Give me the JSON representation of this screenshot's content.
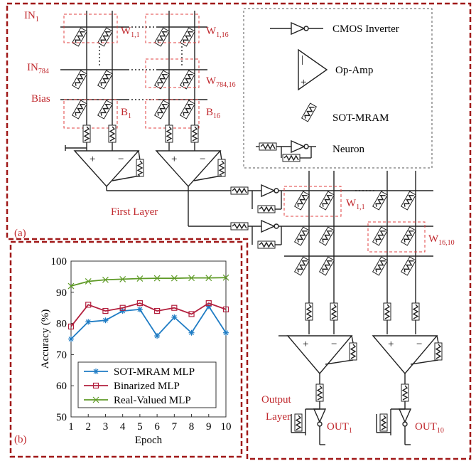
{
  "labels": {
    "in1": {
      "text": "IN",
      "sub": "1"
    },
    "in784": {
      "text": "IN",
      "sub": "784"
    },
    "bias": {
      "text": "Bias"
    },
    "w11": {
      "text": "W",
      "sub": "1,1"
    },
    "w116": {
      "text": "W",
      "sub": "1,16"
    },
    "w78416": {
      "text": "W",
      "sub": "784,16"
    },
    "b1": {
      "text": "B",
      "sub": "1"
    },
    "b16": {
      "text": "B",
      "sub": "16"
    },
    "first_layer": {
      "text": "First Layer"
    },
    "w11_out": {
      "text": "W",
      "sub": "1,1"
    },
    "w1610": {
      "text": "W",
      "sub": "16,10"
    },
    "output_layer": {
      "text": "Output"
    },
    "output_layer2": {
      "text": "Layer"
    },
    "out1": {
      "text": "OUT",
      "sub": "1"
    },
    "out10": {
      "text": "OUT",
      "sub": "10"
    },
    "panel_a": {
      "text": "(a)"
    },
    "panel_b": {
      "text": "(b)"
    }
  },
  "legend_box": {
    "inverter": "CMOS Inverter",
    "opamp": "Op-Amp",
    "sotmram": "SOT-MRAM",
    "neuron": "Neuron"
  },
  "chart_data": {
    "type": "line",
    "xlabel": "Epoch",
    "ylabel": "Accuracy (%)",
    "x": [
      1,
      2,
      3,
      4,
      5,
      6,
      7,
      8,
      9,
      10
    ],
    "xlim": [
      1,
      10
    ],
    "xticks": [
      1,
      2,
      3,
      4,
      5,
      6,
      7,
      8,
      9,
      10
    ],
    "ylim": [
      50,
      100
    ],
    "yticks": [
      50,
      60,
      70,
      80,
      90,
      100
    ],
    "series": [
      {
        "name": "SOT-MRAM MLP",
        "color": "#1f7cc4",
        "marker": "star",
        "values": [
          75,
          80.5,
          81,
          84,
          84.5,
          76,
          82,
          77,
          85.5,
          77
        ]
      },
      {
        "name": "Binarized MLP",
        "color": "#b3203e",
        "marker": "square",
        "values": [
          79,
          86,
          84,
          85,
          86.5,
          84,
          85,
          83,
          86.5,
          84.5
        ]
      },
      {
        "name": "Real-Valued MLP",
        "color": "#5e9a26",
        "marker": "x",
        "values": [
          92,
          93.5,
          94,
          94.2,
          94.4,
          94.5,
          94.5,
          94.6,
          94.6,
          94.7
        ]
      }
    ]
  }
}
